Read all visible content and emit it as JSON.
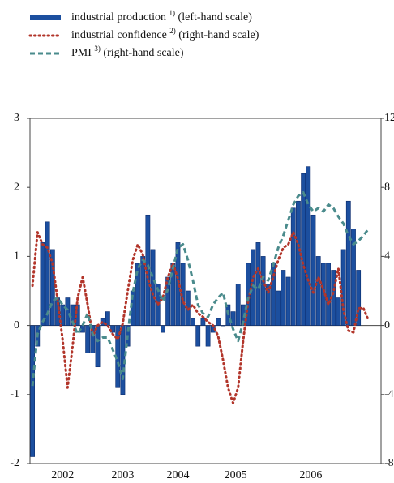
{
  "chart_data": {
    "type": "bar-line",
    "categories": [
      null,
      null,
      null,
      null,
      null,
      null,
      null,
      null,
      null,
      null,
      null,
      null,
      null,
      null,
      null,
      null,
      null,
      null,
      null,
      null,
      null,
      null,
      null,
      null,
      null,
      null,
      null,
      null,
      null,
      null,
      null,
      null,
      null,
      null,
      null,
      null,
      null,
      null,
      null,
      null,
      null,
      null,
      null,
      null,
      null,
      null,
      null,
      null,
      null,
      null,
      null,
      null,
      null,
      null,
      null,
      null,
      null,
      null,
      null,
      null,
      null,
      null,
      null,
      null,
      null,
      null,
      null,
      null
    ],
    "xlim": [
      -0.5,
      69.5
    ],
    "xticks": [
      {
        "value": 6,
        "label": "2002"
      },
      {
        "value": 18,
        "label": "2003"
      },
      {
        "value": 29,
        "label": "2004"
      },
      {
        "value": 40.5,
        "label": "2005"
      },
      {
        "value": 55.5,
        "label": "2006"
      }
    ],
    "ylim": [
      -2,
      3
    ],
    "yticks": [
      -2,
      -1,
      0,
      1,
      2,
      3
    ],
    "y2lim": [
      -8,
      12
    ],
    "y2ticks": [
      -8,
      -4,
      0,
      4,
      8,
      12
    ],
    "series": [
      {
        "name": "industrial production",
        "note": "1)",
        "scale": "(left-hand scale)",
        "kind": "bar",
        "color": "#1c4f9f",
        "values": [
          -1.9,
          -0.3,
          1.2,
          1.5,
          1.1,
          0.4,
          0.3,
          0.4,
          0.3,
          0.3,
          -0.1,
          -0.4,
          -0.4,
          -0.6,
          0.1,
          0.2,
          -0.1,
          -0.9,
          -1.0,
          -0.3,
          0.5,
          0.9,
          1.0,
          1.6,
          1.1,
          0.6,
          -0.1,
          0.7,
          0.9,
          1.2,
          0.9,
          0.5,
          0.1,
          -0.3,
          0.1,
          -0.3,
          -0.1,
          0.1,
          0.0,
          0.3,
          0.2,
          0.6,
          0.3,
          0.9,
          1.1,
          1.2,
          1.0,
          0.6,
          0.9,
          0.5,
          0.8,
          0.7,
          1.7,
          1.8,
          2.2,
          2.3,
          1.6,
          1.0,
          0.9,
          0.9,
          0.8,
          0.4,
          1.1,
          1.8,
          1.4,
          0.8,
          null,
          null
        ]
      },
      {
        "name": "industrial confidence",
        "note": "2)",
        "scale": "(right-hand scale)",
        "kind": "dotted",
        "axis": "y2",
        "color": "#b2352a",
        "values": [
          2.3,
          5.4,
          4.7,
          4.5,
          3.6,
          1.5,
          -0.8,
          -3.6,
          -1.2,
          1.6,
          2.8,
          1.2,
          -0.6,
          0,
          0.2,
          0,
          -0.5,
          -0.8,
          0.1,
          2.0,
          3.8,
          4.7,
          4.1,
          2.7,
          1.8,
          1.2,
          1.6,
          2.8,
          3.6,
          2.7,
          1.4,
          0.9,
          1.2,
          0.7,
          0.5,
          0.2,
          0,
          -0.6,
          -2.0,
          -3.6,
          -4.5,
          -3.6,
          -0.9,
          1.4,
          2.8,
          3.3,
          2.6,
          1.9,
          2.8,
          3.8,
          4.5,
          4.7,
          5.4,
          4.7,
          3.5,
          2.6,
          1.9,
          2.8,
          2.1,
          1.2,
          1.9,
          3.3,
          0.9,
          -0.3,
          -0.4,
          1.0,
          1.0,
          0.3
        ]
      },
      {
        "name": "PMI",
        "note": "3)",
        "scale": "(right-hand scale)",
        "kind": "dashed",
        "axis": "y2",
        "color": "#4a8b8c",
        "values": [
          -3.5,
          -0.5,
          0.2,
          0.7,
          1.4,
          1.6,
          1.2,
          0.9,
          0.2,
          -0.5,
          0,
          0.7,
          -0.5,
          -0.9,
          -0.7,
          -0.7,
          -1.4,
          -2.1,
          -3.1,
          -0.5,
          1.9,
          3.3,
          3.8,
          3.5,
          2.8,
          2.1,
          1.4,
          2.1,
          3.3,
          4.5,
          4.7,
          3.8,
          2.6,
          1.2,
          0.7,
          0.5,
          1.2,
          1.6,
          1.9,
          0.7,
          -0.2,
          -0.9,
          0.2,
          1.6,
          2.3,
          2.1,
          2.8,
          2.6,
          3.5,
          4.5,
          5.2,
          6.1,
          7.0,
          7.5,
          7.7,
          7.0,
          6.6,
          6.8,
          6.6,
          7.0,
          6.8,
          6.3,
          5.9,
          5.2,
          4.7,
          4.9,
          5.2,
          5.6
        ]
      }
    ]
  }
}
